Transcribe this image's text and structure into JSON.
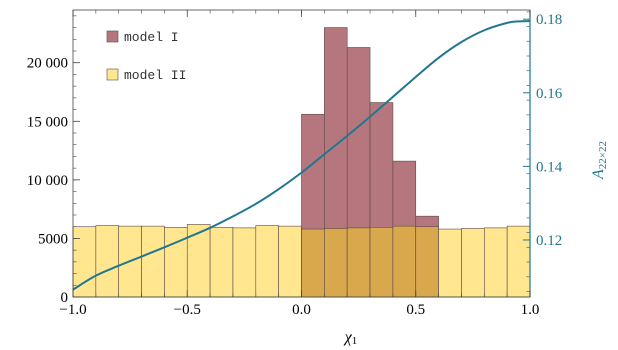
{
  "chart_data": {
    "type": "bar",
    "title": "",
    "xlabel": "χ",
    "xlabel_sub": "1",
    "ylabel": "",
    "ylabel_right": "A",
    "ylabel_right_sub": "22×22",
    "xlim": [
      -1.0,
      1.0
    ],
    "ylim": [
      0,
      24500
    ],
    "ylim_right": [
      0.1045,
      0.1825
    ],
    "x_ticks": [
      -1.0,
      -0.5,
      0.0,
      0.5,
      1.0
    ],
    "x_tick_labels": [
      "−1.0",
      "−0.5",
      "0.0",
      "0.5",
      "1.0"
    ],
    "y_ticks": [
      0,
      5000,
      10000,
      15000,
      20000
    ],
    "y_tick_labels": [
      "0",
      "5000",
      "10 000",
      "15 000",
      "20 000"
    ],
    "y_right_ticks": [
      0.12,
      0.14,
      0.16,
      0.18
    ],
    "y_right_tick_labels": [
      "0.12",
      "0.14",
      "0.16",
      "0.18"
    ],
    "bin_edges": [
      -1.0,
      -0.9,
      -0.8,
      -0.7,
      -0.6,
      -0.5,
      -0.4,
      -0.3,
      -0.2,
      -0.1,
      0.0,
      0.1,
      0.2,
      0.3,
      0.4,
      0.5,
      0.6,
      0.7,
      0.8,
      0.9,
      1.0
    ],
    "legend_position": "top-left",
    "series": [
      {
        "name": "model I",
        "color": "#b5777d",
        "values": [
          0,
          0,
          0,
          0,
          0,
          0,
          0,
          0,
          0,
          0,
          15600,
          23000,
          21300,
          16600,
          11600,
          6900,
          0,
          0,
          0,
          0
        ]
      },
      {
        "name": "model II",
        "color": "#ffe68f",
        "values": [
          6000,
          6100,
          6050,
          6050,
          5950,
          6200,
          5950,
          5900,
          6100,
          6050,
          5800,
          5850,
          5900,
          5950,
          6050,
          6000,
          5800,
          5850,
          5900,
          6050
        ]
      }
    ],
    "overlap_color": "#d9a84c",
    "curve": {
      "axis": "right",
      "color": "#1f7790",
      "x": [
        -1.0,
        -0.9,
        -0.8,
        -0.7,
        -0.6,
        -0.5,
        -0.4,
        -0.3,
        -0.2,
        -0.1,
        0.0,
        0.1,
        0.2,
        0.3,
        0.4,
        0.5,
        0.6,
        0.7,
        0.8,
        0.9,
        0.95,
        1.0
      ],
      "y": [
        0.1065,
        0.1103,
        0.113,
        0.1155,
        0.118,
        0.1206,
        0.1233,
        0.1264,
        0.1298,
        0.1338,
        0.1383,
        0.1433,
        0.1483,
        0.1535,
        0.1589,
        0.1643,
        0.1695,
        0.1738,
        0.177,
        0.179,
        0.1794,
        0.1795
      ]
    }
  }
}
